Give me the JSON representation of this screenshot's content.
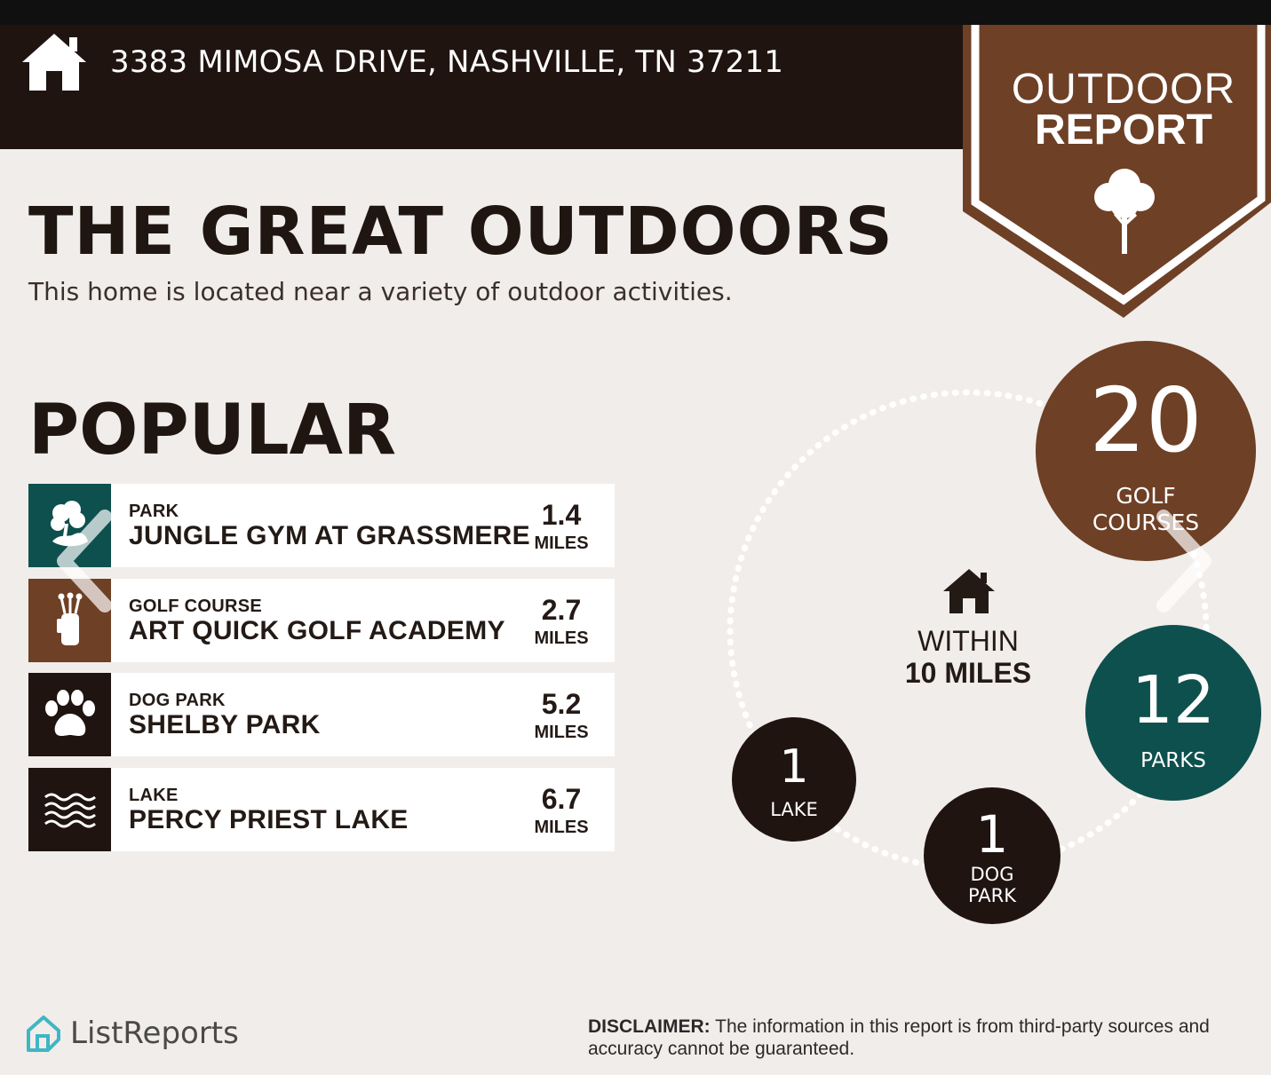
{
  "header": {
    "address": "3383 MIMOSA DRIVE, NASHVILLE, TN 37211",
    "home_icon": "house-icon"
  },
  "badge": {
    "line1": "OUTDOOR",
    "line2": "REPORT",
    "icon": "tree-icon",
    "color": "#6e4026"
  },
  "title": "THE GREAT OUTDOORS",
  "subtitle": "This home is located near a variety of outdoor activities.",
  "popular": {
    "heading": "POPULAR",
    "items": [
      {
        "category": "PARK",
        "name": "JUNGLE GYM AT GRASSMERE",
        "distance": "1.4",
        "unit": "MILES",
        "icon": "park-icon",
        "color": "#0e504e"
      },
      {
        "category": "GOLF COURSE",
        "name": "ART QUICK GOLF ACADEMY",
        "distance": "2.7",
        "unit": "MILES",
        "icon": "golf-bag-icon",
        "color": "#6e4026"
      },
      {
        "category": "DOG PARK",
        "name": "SHELBY PARK",
        "distance": "5.2",
        "unit": "MILES",
        "icon": "paw-icon",
        "color": "#1f1410"
      },
      {
        "category": "LAKE",
        "name": "PERCY PRIEST LAKE",
        "distance": "6.7",
        "unit": "MILES",
        "icon": "waves-icon",
        "color": "#1f1410"
      }
    ]
  },
  "within": {
    "line1": "WITHIN",
    "line2": "10 MILES",
    "icon": "house-icon"
  },
  "counts": {
    "golf": {
      "number": "20",
      "label1": "GOLF",
      "label2": "COURSES",
      "color": "#6e4026"
    },
    "parks": {
      "number": "12",
      "label": "PARKS",
      "color": "#0e504e"
    },
    "lake": {
      "number": "1",
      "label": "LAKE",
      "color": "#1f1410"
    },
    "dog": {
      "number": "1",
      "label1": "DOG",
      "label2": "PARK",
      "color": "#1f1410"
    }
  },
  "footer": {
    "brand": "ListReports",
    "logo_icon": "listreports-logo-icon",
    "disclaimer_label": "DISCLAIMER:",
    "disclaimer_text": " The information in this report is from third-party sources and accuracy cannot be guaranteed."
  },
  "nav": {
    "prev_icon": "chevron-left-icon",
    "next_icon": "chevron-right-icon"
  }
}
